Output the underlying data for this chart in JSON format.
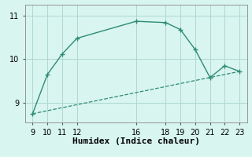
{
  "main_x": [
    9,
    10,
    11,
    12,
    16,
    18,
    19,
    20,
    21,
    22,
    23
  ],
  "main_y": [
    8.75,
    9.65,
    10.12,
    10.48,
    10.87,
    10.84,
    10.68,
    10.22,
    9.58,
    9.85,
    9.72
  ],
  "trend_x": [
    9,
    23
  ],
  "trend_y": [
    8.75,
    9.72
  ],
  "line_color": "#2e8b74",
  "bg_color": "#d8f5f0",
  "grid_color": "#b0d8d0",
  "xlabel": "Humidex (Indice chaleur)",
  "xlim": [
    8.5,
    23.5
  ],
  "ylim": [
    8.55,
    11.25
  ],
  "xticks": [
    9,
    10,
    11,
    12,
    16,
    18,
    19,
    20,
    21,
    22,
    23
  ],
  "yticks": [
    9,
    10,
    11
  ],
  "xlabel_fontsize": 8,
  "tick_fontsize": 7
}
